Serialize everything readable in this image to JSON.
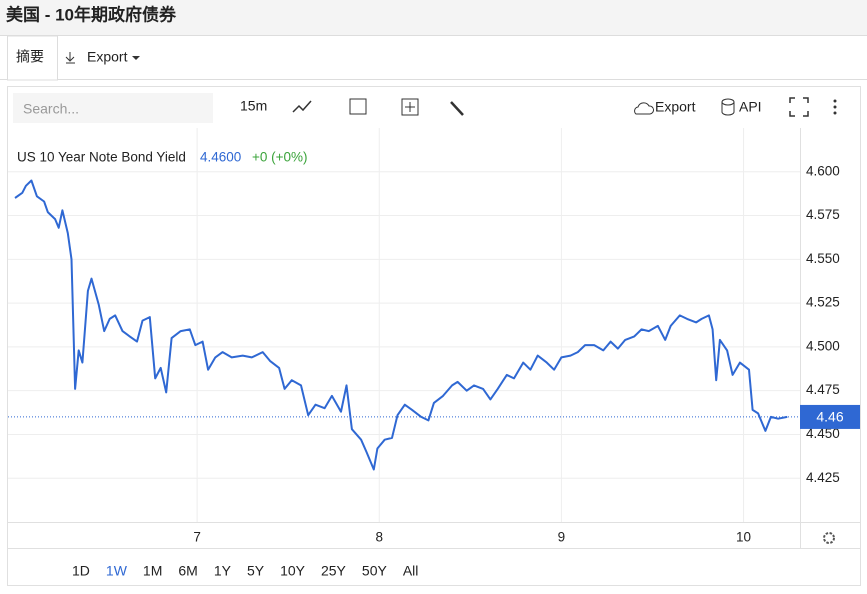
{
  "header": {
    "title": "美国 - 10年期政府债券"
  },
  "tabs": [
    "摘要",
    "Export"
  ],
  "toolbar": {
    "search_placeholder": "Search...",
    "interval": "15m",
    "export": "Export",
    "api": "API"
  },
  "ranges": [
    "1D",
    "1W",
    "1M",
    "6M",
    "1Y",
    "5Y",
    "10Y",
    "25Y",
    "50Y",
    "All"
  ],
  "selected_range": "1W",
  "chart_data": {
    "type": "line",
    "legend_value": "4.4600",
    "legend_change": "+0 (+0%)",
    "price_line": {
      "value": 4.46,
      "label": "4.46"
    },
    "xlim": [
      6,
      10.31
    ],
    "xticks": [
      7,
      8,
      9,
      10
    ],
    "ylim": [
      4.4,
      4.625
    ],
    "yticks": [
      {
        "value": 4.425,
        "label": "4.425"
      },
      {
        "value": 4.45,
        "label": "4.450"
      },
      {
        "value": 4.475,
        "label": "4.475"
      },
      {
        "value": 4.5,
        "label": "4.500"
      },
      {
        "value": 4.525,
        "label": "4.525"
      },
      {
        "value": 4.55,
        "label": "4.550"
      },
      {
        "value": 4.575,
        "label": "4.575"
      },
      {
        "value": 4.6,
        "label": "4.600"
      }
    ],
    "grid": true,
    "x": [
      6.0,
      6.04,
      6.06,
      6.09,
      6.12,
      6.16,
      6.18,
      6.22,
      6.24,
      6.26,
      6.29,
      6.31,
      6.33,
      6.35,
      6.37,
      6.4,
      6.42,
      6.46,
      6.49,
      6.52,
      6.55,
      6.59,
      6.63,
      6.67,
      6.7,
      6.74,
      6.77,
      6.8,
      6.83,
      6.86,
      6.91,
      6.96,
      6.99,
      7.03,
      7.06,
      7.1,
      7.14,
      7.19,
      7.25,
      7.3,
      7.36,
      7.4,
      7.45,
      7.48,
      7.52,
      7.57,
      7.61,
      7.65,
      7.7,
      7.74,
      7.79,
      7.82,
      7.85,
      7.9,
      7.93,
      7.97,
      7.99,
      8.03,
      8.07,
      8.1,
      8.14,
      8.18,
      8.23,
      8.27,
      8.3,
      8.35,
      8.4,
      8.43,
      8.48,
      8.52,
      8.57,
      8.61,
      8.65,
      8.7,
      8.74,
      8.79,
      8.83,
      8.87,
      8.92,
      8.96,
      9.0,
      9.05,
      9.09,
      9.13,
      9.18,
      9.23,
      9.27,
      9.31,
      9.35,
      9.4,
      9.44,
      9.48,
      9.53,
      9.57,
      9.6,
      9.65,
      9.69,
      9.74,
      9.77,
      9.81,
      9.83,
      9.85,
      9.87,
      9.91,
      9.94,
      9.98,
      10.03,
      10.05,
      10.08,
      10.12,
      10.15,
      10.19,
      10.24
    ],
    "series": [
      {
        "name": "US 10 Year Note Bond Yield",
        "color": "#2f68d3",
        "values": [
          4.585,
          4.588,
          4.592,
          4.595,
          4.586,
          4.583,
          4.577,
          4.573,
          4.568,
          4.578,
          4.565,
          4.55,
          4.476,
          4.498,
          4.491,
          4.532,
          4.539,
          4.524,
          4.509,
          4.516,
          4.518,
          4.509,
          4.506,
          4.503,
          4.515,
          4.517,
          4.482,
          4.488,
          4.474,
          4.505,
          4.509,
          4.51,
          4.501,
          4.503,
          4.487,
          4.494,
          4.497,
          4.494,
          4.495,
          4.494,
          4.497,
          4.492,
          4.488,
          4.476,
          4.481,
          4.478,
          4.461,
          4.467,
          4.465,
          4.472,
          4.463,
          4.478,
          4.453,
          4.447,
          4.44,
          4.43,
          4.442,
          4.447,
          4.448,
          4.461,
          4.467,
          4.464,
          4.46,
          4.458,
          4.468,
          4.472,
          4.478,
          4.48,
          4.475,
          4.478,
          4.476,
          4.47,
          4.476,
          4.484,
          4.482,
          4.491,
          4.487,
          4.495,
          4.491,
          4.487,
          4.494,
          4.495,
          4.497,
          4.501,
          4.501,
          4.498,
          4.503,
          4.499,
          4.504,
          4.506,
          4.51,
          4.509,
          4.512,
          4.504,
          4.512,
          4.518,
          4.516,
          4.514,
          4.516,
          4.518,
          4.51,
          4.481,
          4.504,
          4.498,
          4.484,
          4.491,
          4.487,
          4.464,
          4.462,
          4.452,
          4.46,
          4.459,
          4.46
        ]
      }
    ]
  }
}
